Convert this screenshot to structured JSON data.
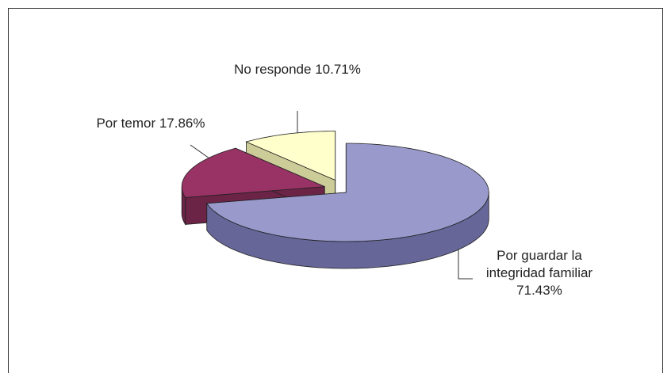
{
  "chart_data": {
    "type": "pie",
    "categories": [
      "Por guardar la integridad familiar",
      "Por temor",
      "No responde"
    ],
    "values": [
      71.43,
      17.86,
      10.71
    ],
    "value_labels": [
      "71.43%",
      "17.86%",
      "10.71%"
    ],
    "colors": [
      "#9999cc",
      "#993366",
      "#ffffcc"
    ]
  }
}
